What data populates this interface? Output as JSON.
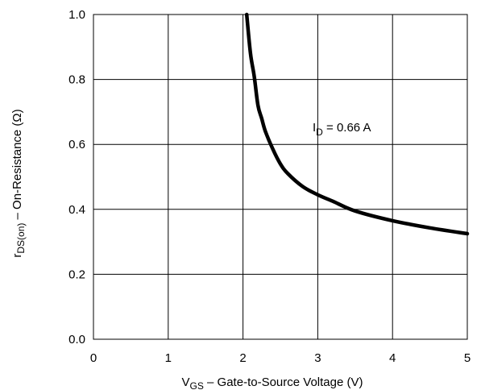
{
  "chart_data": {
    "type": "line",
    "xlabel": {
      "main": "V",
      "sub": "GS",
      "rest": " – Gate-to-Source Voltage (V)"
    },
    "ylabel": {
      "main": "r",
      "sub": "DS(on)",
      "rest": "   –  On-Resistance (Ω)"
    },
    "xlim": [
      0,
      5
    ],
    "ylim": [
      0.0,
      1.0
    ],
    "x_ticks": [
      "0",
      "1",
      "2",
      "3",
      "4",
      "5"
    ],
    "y_ticks": [
      "0.0",
      "0.2",
      "0.4",
      "0.6",
      "0.8",
      "1.0"
    ],
    "grid": true,
    "annotation": {
      "main": "I",
      "sub": "D",
      "rest": " = 0.66 A"
    },
    "series": [
      {
        "x": [
          2.05,
          2.1,
          2.15,
          2.2,
          2.25,
          2.3,
          2.4,
          2.5,
          2.6,
          2.8,
          3.0,
          3.2,
          3.5,
          4.0,
          4.5,
          5.0
        ],
        "y": [
          1.0,
          0.88,
          0.81,
          0.72,
          0.68,
          0.64,
          0.585,
          0.54,
          0.51,
          0.47,
          0.445,
          0.425,
          0.395,
          0.365,
          0.343,
          0.325
        ]
      }
    ]
  }
}
